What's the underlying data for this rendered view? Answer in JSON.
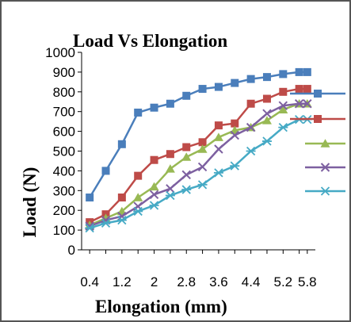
{
  "chart_data": {
    "type": "line",
    "title": "Load Vs Elongation",
    "xlabel": "Elongation (mm)",
    "ylabel": "Load (N)",
    "ylim": [
      0,
      1000
    ],
    "y_ticks": [
      "0",
      "100",
      "200",
      "300",
      "400",
      "500",
      "600",
      "700",
      "800",
      "900",
      "1000"
    ],
    "x_tick_labels": [
      "0.4",
      "1.2",
      "2",
      "2.8",
      "3.6",
      "4.4",
      "5.2",
      "5.8"
    ],
    "x": [
      0.4,
      0.8,
      1.2,
      1.6,
      2.0,
      2.4,
      2.8,
      3.2,
      3.6,
      4.0,
      4.4,
      4.8,
      5.2,
      5.6,
      5.8
    ],
    "grid": false,
    "legend": "right",
    "series": [
      {
        "color": "#4a7ebb",
        "marker": "square",
        "values": [
          265,
          400,
          535,
          695,
          720,
          740,
          780,
          815,
          825,
          845,
          865,
          875,
          890,
          900,
          900
        ]
      },
      {
        "color": "#be4b48",
        "marker": "square",
        "values": [
          140,
          180,
          265,
          375,
          455,
          485,
          520,
          545,
          630,
          640,
          740,
          765,
          800,
          815,
          815
        ]
      },
      {
        "color": "#98b954",
        "marker": "triangle",
        "values": [
          125,
          160,
          195,
          265,
          320,
          410,
          470,
          510,
          570,
          605,
          620,
          655,
          710,
          740,
          740
        ]
      },
      {
        "color": "#7d60a0",
        "marker": "x",
        "values": [
          120,
          150,
          170,
          220,
          280,
          310,
          380,
          420,
          510,
          580,
          620,
          690,
          730,
          740,
          740
        ]
      },
      {
        "color": "#46aac5",
        "marker": "star",
        "values": [
          110,
          135,
          150,
          195,
          225,
          275,
          305,
          330,
          390,
          425,
          500,
          550,
          620,
          660,
          660
        ]
      }
    ]
  }
}
